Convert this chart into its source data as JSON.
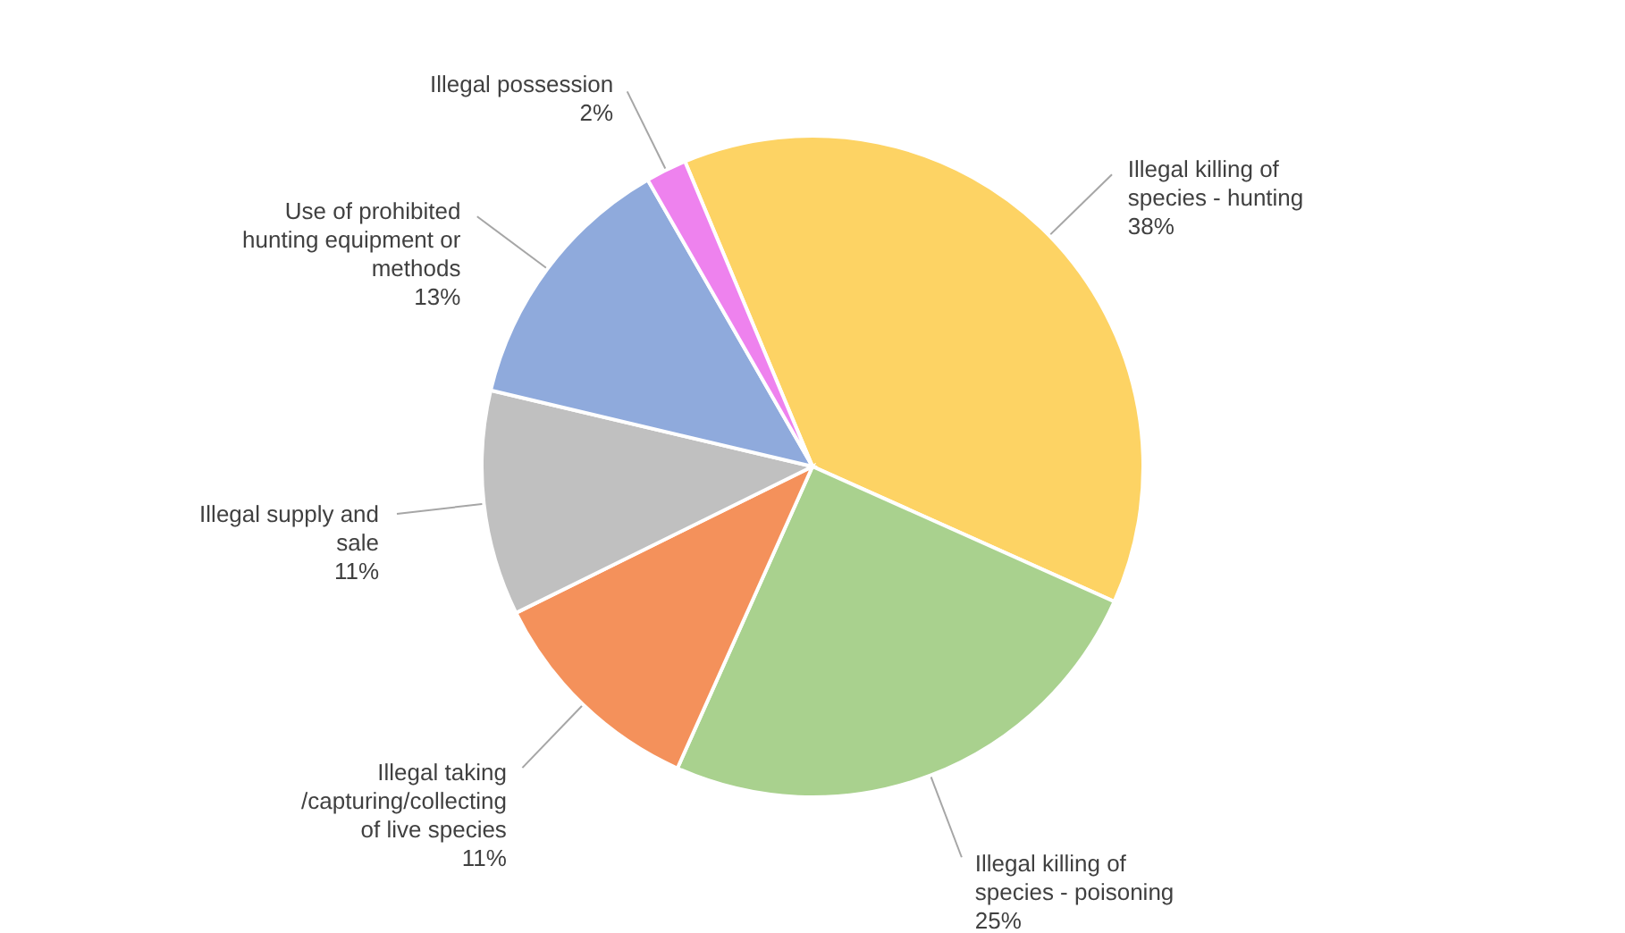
{
  "chart_data": {
    "type": "pie",
    "categories": [
      "Illegal killing of species - hunting",
      "Illegal killing of species - poisoning",
      "Illegal taking /capturing/collecting of live species",
      "Illegal supply and sale",
      "Use of prohibited hunting equipment or methods",
      "Illegal possession"
    ],
    "values": [
      38,
      25,
      11,
      11,
      13,
      2
    ],
    "colors": [
      "#fdd364",
      "#a9d18e",
      "#f4915b",
      "#c0c0c0",
      "#8faadc",
      "#ee82ee"
    ],
    "value_labels": [
      "38%",
      "25%",
      "11%",
      "11%",
      "13%",
      "2%"
    ]
  }
}
